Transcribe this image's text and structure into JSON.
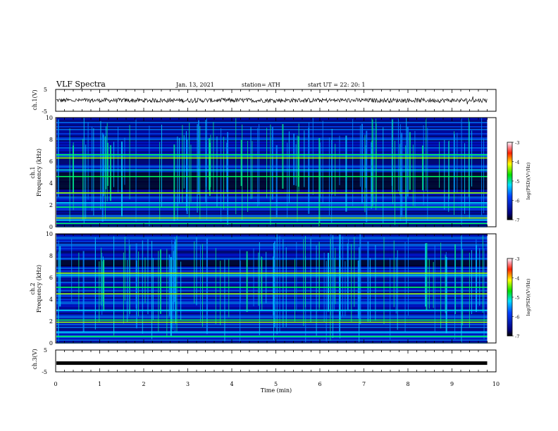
{
  "header": {
    "title": "VLF Spectra",
    "date": "Jan. 13, 2021",
    "station": "station= ATH",
    "start": "start  UT =   22: 20: 1"
  },
  "chart_data": [
    {
      "type": "line",
      "name": "ch1-waveform",
      "ylabel": "ch.1(V)",
      "xlim": [
        0,
        10
      ],
      "ylim": [
        -5,
        5
      ],
      "yticks": [
        "5",
        "-5"
      ],
      "baseline": 0,
      "noise_amplitude": 0.4
    },
    {
      "type": "heatmap",
      "name": "ch1-spectrogram",
      "ylabel_line1": "ch.1",
      "ylabel_line2": "Frequency (kHz)",
      "xlim": [
        0,
        10
      ],
      "ylim": [
        0,
        10
      ],
      "yticks": [
        "0",
        "2",
        "4",
        "6",
        "8",
        "10"
      ],
      "colorbar": {
        "label": "log(PSD)(V²/Hz)",
        "range": [
          -7,
          -3
        ],
        "ticks": [
          "-3",
          "-4",
          "-5",
          "-6",
          "-7"
        ]
      },
      "bright_bands_khz": [
        0.3,
        0.6,
        0.8,
        1.8,
        2.2,
        3.1,
        4.6,
        5.2,
        6.3,
        6.6
      ],
      "dark_band_khz": [
        3.4,
        5.0
      ]
    },
    {
      "type": "heatmap",
      "name": "ch2-spectrogram",
      "ylabel_line1": "ch.2",
      "ylabel_line2": "Frequency (kHz)",
      "xlim": [
        0,
        10
      ],
      "ylim": [
        0,
        10
      ],
      "yticks": [
        "0",
        "2",
        "4",
        "6",
        "8",
        "10"
      ],
      "colorbar": {
        "label": "log(PSD)(V²/Hz)",
        "range": [
          -7,
          -3
        ],
        "ticks": [
          "-3",
          "-4",
          "-5",
          "-6",
          "-7"
        ]
      },
      "bright_bands_khz": [
        0.6,
        1.0,
        1.9,
        2.1,
        3.0,
        4.5,
        5.1,
        6.2,
        6.4
      ],
      "dark_band_khz": [
        7.0,
        7.6
      ]
    },
    {
      "type": "line",
      "name": "ch3-waveform",
      "ylabel": "ch.3(V)",
      "xlim": [
        0,
        10
      ],
      "ylim": [
        -5,
        5
      ],
      "yticks": [
        "5",
        "-5"
      ],
      "baseline": -1,
      "noise_amplitude": 0
    }
  ],
  "xaxis": {
    "label": "Time (min)",
    "ticks": [
      "0",
      "1",
      "2",
      "3",
      "4",
      "5",
      "6",
      "7",
      "8",
      "9",
      "10"
    ],
    "data_end": 9.8
  }
}
